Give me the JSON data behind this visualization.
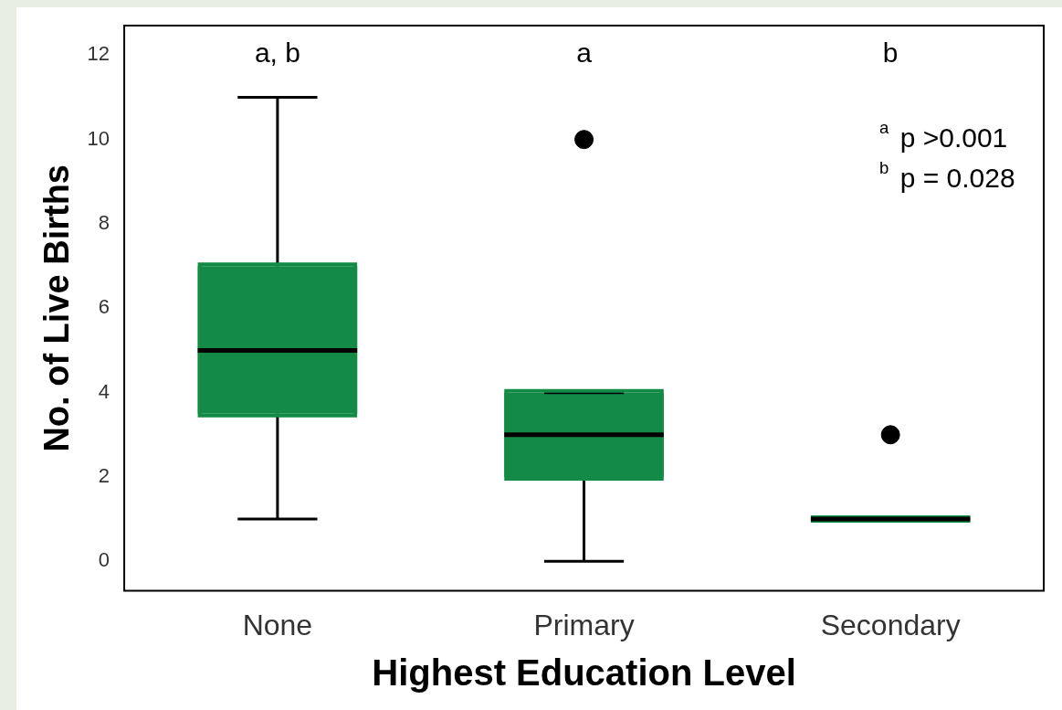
{
  "chart_data": {
    "type": "box",
    "xlabel": "Highest Education Level",
    "ylabel": "No. of Live Births",
    "categories": [
      "None",
      "Primary",
      "Secondary"
    ],
    "boxes": [
      {
        "low": 1,
        "q1": 3.5,
        "median": 5,
        "q3": 7,
        "high": 11
      },
      {
        "low": 0,
        "q1": 2,
        "median": 3,
        "q3": 4,
        "high": 4,
        "outliers": [
          10
        ]
      },
      {
        "low": 1,
        "q1": 1,
        "median": 1,
        "q3": 1,
        "high": 1,
        "outliers": [
          3
        ]
      }
    ],
    "color": "#138a45",
    "ylim": [
      -0.7,
      12.7
    ],
    "yticks": [
      0,
      2,
      4,
      6,
      8,
      10,
      12
    ],
    "grid": false,
    "legend": false,
    "annotations": [
      "a, b",
      "a",
      "b",
      "$^{a}$ p >0.001",
      "$^{b}$ p = 0.028"
    ]
  }
}
